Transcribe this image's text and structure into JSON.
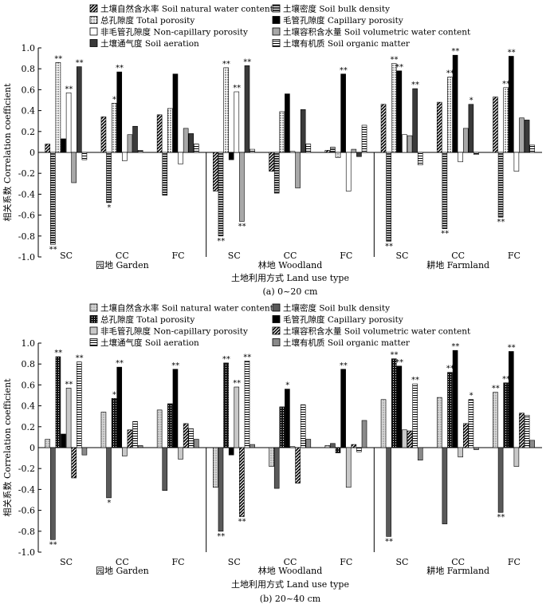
{
  "chart_data": [
    {
      "type": "bar",
      "panel": "(a) 0~20 cm",
      "xlabel": "土地利用方式 Land use type",
      "ylabel": "相关系数 Correlation coefficient",
      "ylim": [
        -1.0,
        1.0
      ],
      "yticks": [
        "-1.0",
        "-0.8",
        "-0.6",
        "-0.4",
        "-0.2",
        "0",
        "0.2",
        "0.4",
        "0.6",
        "0.8",
        "1.0"
      ],
      "groups": [
        "园地 Garden",
        "林地 Woodland",
        "耕地 Farmland"
      ],
      "categories": [
        "SC",
        "CC",
        "FC",
        "SC",
        "CC",
        "FC",
        "SC",
        "CC",
        "FC"
      ],
      "series": [
        {
          "name": "土壤自然含水率 Soil natural water content",
          "pattern": "diag",
          "values": [
            0.08,
            0.34,
            0.36,
            -0.37,
            -0.18,
            0.02,
            0.46,
            0.48,
            0.53
          ],
          "sig": [
            "",
            "",
            "",
            "",
            "",
            "",
            "",
            "",
            ""
          ]
        },
        {
          "name": "土壤密度 Soil bulk density",
          "pattern": "hstripe",
          "values": [
            -0.88,
            -0.48,
            -0.41,
            -0.8,
            -0.39,
            0.05,
            -0.85,
            -0.73,
            -0.62
          ],
          "sig": [
            "**",
            "*",
            "",
            "**",
            "",
            "",
            "**",
            "**",
            "**"
          ]
        },
        {
          "name": "总孔隙度 Total porosity",
          "pattern": "dots",
          "values": [
            0.86,
            0.47,
            0.42,
            0.81,
            0.39,
            -0.05,
            0.85,
            0.72,
            0.62
          ],
          "sig": [
            "**",
            "*",
            "",
            "**",
            "",
            "",
            "**",
            "**",
            "**"
          ]
        },
        {
          "name": "毛管孔隙度 Capillary porosity",
          "pattern": "black",
          "values": [
            0.13,
            0.77,
            0.75,
            -0.07,
            0.56,
            0.75,
            0.78,
            0.93,
            0.92
          ],
          "sig": [
            "",
            "**",
            "",
            "",
            "",
            "**",
            "**",
            "**",
            "**"
          ]
        },
        {
          "name": "非毛管孔隙度 Non-capillary porosity",
          "pattern": "white",
          "values": [
            0.57,
            -0.08,
            -0.11,
            0.58,
            0.01,
            -0.37,
            0.17,
            -0.09,
            -0.18
          ],
          "sig": [
            "**",
            "",
            "",
            "**",
            "",
            "",
            "",
            "",
            ""
          ]
        },
        {
          "name": "土壤容积含水量 Soil volumetric water content",
          "pattern": "gray",
          "values": [
            -0.29,
            0.17,
            0.23,
            -0.66,
            -0.34,
            0.03,
            0.16,
            0.23,
            0.33
          ],
          "sig": [
            "",
            "",
            "",
            "**",
            "",
            "",
            "",
            "",
            ""
          ]
        },
        {
          "name": "土壤通气度 Soil aeration",
          "pattern": "dark",
          "values": [
            0.82,
            0.25,
            0.18,
            0.83,
            0.41,
            -0.04,
            0.61,
            0.46,
            0.31
          ],
          "sig": [
            "**",
            "",
            "",
            "**",
            "",
            "",
            "**",
            "*",
            ""
          ]
        },
        {
          "name": "土壤有机质 Soil organic matter",
          "pattern": "hline",
          "values": [
            -0.07,
            0.02,
            0.08,
            0.03,
            0.08,
            0.26,
            -0.12,
            -0.02,
            0.07
          ],
          "sig": [
            "",
            "",
            "",
            "",
            "",
            "",
            "",
            "",
            ""
          ]
        }
      ]
    },
    {
      "type": "bar",
      "panel": "(b) 20~40 cm",
      "xlabel": "土地利用方式 Land use type",
      "ylabel": "相关系数 Correlation coefficient",
      "ylim": [
        -1.0,
        1.0
      ],
      "yticks": [
        "-1.0",
        "-0.8",
        "-0.6",
        "-0.4",
        "-0.2",
        "0",
        "0.2",
        "0.4",
        "0.6",
        "0.8",
        "1.0"
      ],
      "groups": [
        "园地 Garden",
        "林地 Woodland",
        "耕地 Farmland"
      ],
      "categories": [
        "SC",
        "CC",
        "FC",
        "SC",
        "CC",
        "FC",
        "SC",
        "CC",
        "FC"
      ],
      "series": [
        {
          "name": "土壤自然含水率 Soil natural water content",
          "pattern": "graydots",
          "values": [
            0.08,
            0.34,
            0.36,
            -0.38,
            -0.18,
            0.02,
            0.46,
            0.48,
            0.53
          ],
          "sig": [
            "",
            "",
            "",
            "",
            "",
            "",
            "",
            "",
            "**"
          ]
        },
        {
          "name": "土壤密度 Soil bulk density",
          "pattern": "dkgray",
          "values": [
            -0.88,
            -0.48,
            -0.41,
            -0.8,
            -0.39,
            0.04,
            -0.85,
            -0.73,
            -0.62
          ],
          "sig": [
            "**",
            "*",
            "",
            "**",
            "",
            "",
            "**",
            "",
            "**"
          ]
        },
        {
          "name": "总孔隙度 Total porosity",
          "pattern": "blackdots",
          "values": [
            0.87,
            0.47,
            0.42,
            0.81,
            0.39,
            -0.05,
            0.85,
            0.72,
            0.62
          ],
          "sig": [
            "**",
            "*",
            "",
            "**",
            "",
            "",
            "**",
            "**",
            "**"
          ]
        },
        {
          "name": "毛管孔隙度 Capillary porosity",
          "pattern": "black",
          "values": [
            0.13,
            0.77,
            0.75,
            -0.07,
            0.56,
            0.75,
            0.78,
            0.93,
            0.92
          ],
          "sig": [
            "",
            "**",
            "**",
            "",
            "*",
            "**",
            "**",
            "**",
            "**"
          ]
        },
        {
          "name": "非毛管孔隙度 Non-capillary porosity",
          "pattern": "ltgray",
          "values": [
            0.57,
            -0.08,
            -0.11,
            0.58,
            0.01,
            -0.38,
            0.17,
            -0.09,
            -0.18
          ],
          "sig": [
            "**",
            "",
            "",
            "**",
            "",
            "",
            "",
            "",
            ""
          ]
        },
        {
          "name": "土壤容积含水量 Soil volumetric water content",
          "pattern": "diagw",
          "values": [
            -0.29,
            0.17,
            0.23,
            -0.66,
            -0.34,
            0.03,
            0.16,
            0.23,
            0.33
          ],
          "sig": [
            "",
            "",
            "",
            "**",
            "",
            "",
            "",
            "",
            ""
          ]
        },
        {
          "name": "土壤通气度 Soil aeration",
          "pattern": "hline",
          "values": [
            0.82,
            0.25,
            0.18,
            0.83,
            0.41,
            -0.04,
            0.61,
            0.46,
            0.31
          ],
          "sig": [
            "**",
            "",
            "",
            "**",
            "",
            "",
            "**",
            "*",
            ""
          ]
        },
        {
          "name": "土壤有机质 Soil organic matter",
          "pattern": "midgray",
          "values": [
            -0.07,
            0.02,
            0.08,
            0.03,
            0.08,
            0.26,
            -0.12,
            -0.02,
            0.07
          ],
          "sig": [
            "",
            "",
            "",
            "",
            "",
            "",
            "",
            "",
            ""
          ]
        }
      ]
    }
  ]
}
